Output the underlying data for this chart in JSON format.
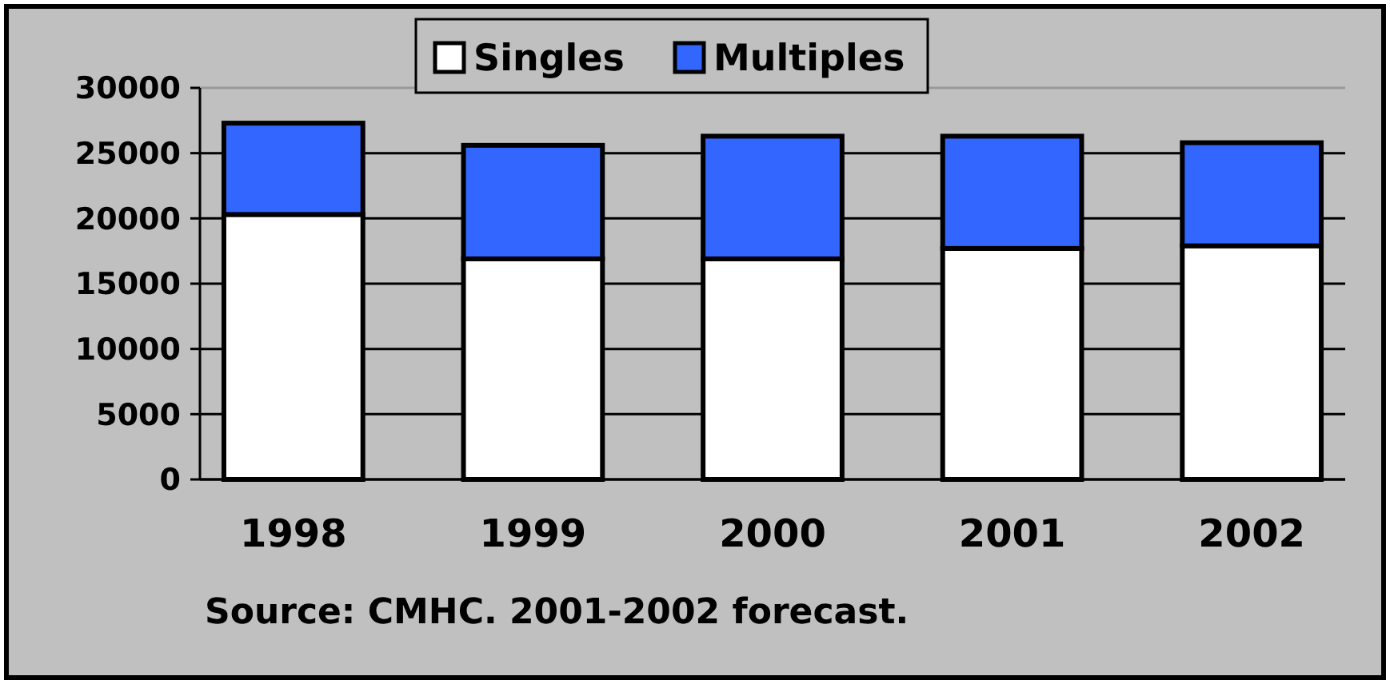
{
  "chart_data": {
    "type": "bar",
    "stacked": true,
    "categories": [
      "1998",
      "1999",
      "2000",
      "2001",
      "2002"
    ],
    "series": [
      {
        "name": "Singles",
        "color": "#ffffff",
        "values": [
          20300,
          16900,
          16900,
          17700,
          17900
        ]
      },
      {
        "name": "Multiples",
        "color": "#3366ff",
        "values": [
          7000,
          8700,
          9400,
          8600,
          7900
        ]
      }
    ],
    "ylim": [
      0,
      30000
    ],
    "yticks": [
      0,
      5000,
      10000,
      15000,
      20000,
      25000,
      30000
    ],
    "grid": "y",
    "legend": "top",
    "annotations": [
      "Source: CMHC. 2001-2002 forecast."
    ]
  }
}
